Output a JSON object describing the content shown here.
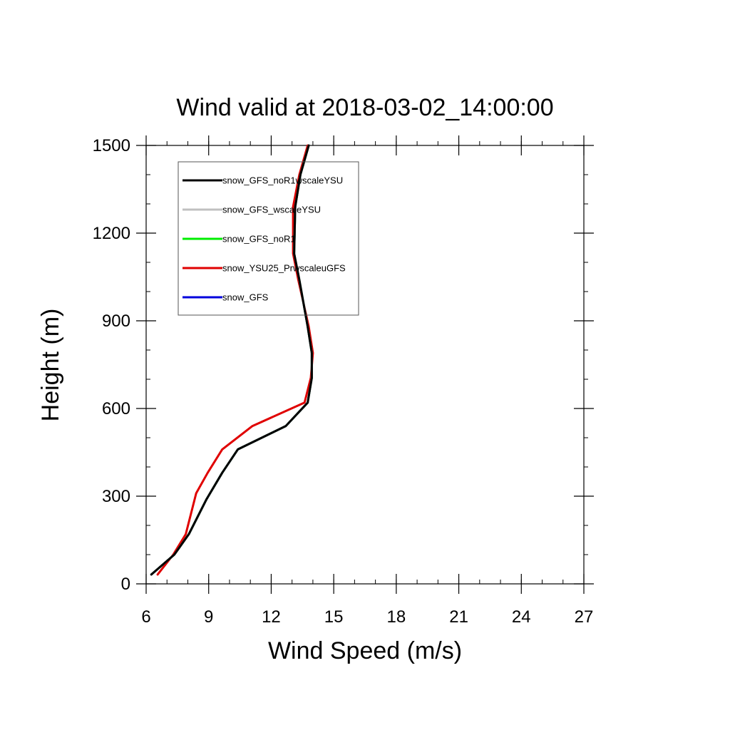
{
  "chart_data": {
    "type": "line",
    "title": "Wind valid at 2018-03-02_14:00:00",
    "xlabel": "Wind Speed (m/s)",
    "ylabel": "Height (m)",
    "xlim": [
      6,
      27
    ],
    "ylim": [
      0,
      1500
    ],
    "xticks": [
      6,
      9,
      12,
      15,
      18,
      21,
      24,
      27
    ],
    "yticks": [
      0,
      300,
      600,
      900,
      1200,
      1500
    ],
    "xtick_labels": [
      "6",
      "9",
      "12",
      "15",
      "18",
      "21",
      "24",
      "27"
    ],
    "ytick_labels": [
      "0",
      "300",
      "600",
      "900",
      "1200",
      "1500"
    ],
    "grid": false,
    "legend_position": "top-left",
    "series": [
      {
        "name": "snow_YSU25_Prwscaleu GFS",
        "legend_label": "snow_YSU25_PrwscaleuGFS",
        "color": "#e00000",
        "points": [
          [
            6.55,
            32
          ],
          [
            7.3,
            100
          ],
          [
            7.9,
            170
          ],
          [
            8.4,
            310
          ],
          [
            8.95,
            380
          ],
          [
            9.65,
            460
          ],
          [
            11.1,
            540
          ],
          [
            13.6,
            620
          ],
          [
            13.9,
            705
          ],
          [
            14.0,
            790
          ],
          [
            13.8,
            880
          ],
          [
            13.3,
            1040
          ],
          [
            13.05,
            1130
          ],
          [
            13.05,
            1290
          ],
          [
            13.35,
            1400
          ],
          [
            13.75,
            1500
          ]
        ]
      },
      {
        "name": "snow_GFS",
        "legend_label": "snow_GFS",
        "color": "#0000dd",
        "points": [
          [
            6.25,
            32
          ],
          [
            7.35,
            100
          ],
          [
            8.05,
            170
          ],
          [
            8.9,
            290
          ],
          [
            9.65,
            380
          ],
          [
            10.4,
            460
          ],
          [
            12.7,
            540
          ],
          [
            13.75,
            620
          ],
          [
            13.95,
            705
          ],
          [
            13.95,
            790
          ],
          [
            13.75,
            880
          ],
          [
            13.35,
            1040
          ],
          [
            13.1,
            1130
          ],
          [
            13.15,
            1290
          ],
          [
            13.4,
            1400
          ],
          [
            13.8,
            1500
          ]
        ]
      },
      {
        "name": "snow_GFS_noR1",
        "legend_label": "snow_GFS_noR1",
        "color": "#00ee00",
        "points": [
          [
            6.25,
            32
          ],
          [
            7.35,
            100
          ],
          [
            8.05,
            170
          ],
          [
            8.9,
            290
          ],
          [
            9.65,
            380
          ],
          [
            10.4,
            460
          ],
          [
            12.7,
            540
          ],
          [
            13.75,
            620
          ],
          [
            13.95,
            705
          ],
          [
            13.95,
            790
          ],
          [
            13.75,
            880
          ],
          [
            13.35,
            1040
          ],
          [
            13.1,
            1130
          ],
          [
            13.15,
            1290
          ],
          [
            13.4,
            1400
          ],
          [
            13.8,
            1500
          ]
        ]
      },
      {
        "name": "snow_GFS_wscaleYSU",
        "legend_label": "snow_GFS_wscaleYSU",
        "color": "#c0c0c0",
        "points": [
          [
            6.25,
            32
          ],
          [
            7.35,
            100
          ],
          [
            8.05,
            170
          ],
          [
            8.9,
            290
          ],
          [
            9.65,
            380
          ],
          [
            10.4,
            460
          ],
          [
            12.7,
            540
          ],
          [
            13.75,
            620
          ],
          [
            13.95,
            705
          ],
          [
            13.95,
            790
          ],
          [
            13.75,
            880
          ],
          [
            13.35,
            1040
          ],
          [
            13.1,
            1130
          ],
          [
            13.15,
            1290
          ],
          [
            13.4,
            1400
          ],
          [
            13.8,
            1500
          ]
        ]
      },
      {
        "name": "snow_GFS_noR1wscaleYSU",
        "legend_label": "snow_GFS_noR1wscaleYSU",
        "color": "#000000",
        "points": [
          [
            6.25,
            32
          ],
          [
            7.35,
            100
          ],
          [
            8.05,
            170
          ],
          [
            8.9,
            290
          ],
          [
            9.65,
            380
          ],
          [
            10.4,
            460
          ],
          [
            12.7,
            540
          ],
          [
            13.75,
            620
          ],
          [
            13.95,
            705
          ],
          [
            13.95,
            790
          ],
          [
            13.75,
            880
          ],
          [
            13.35,
            1040
          ],
          [
            13.1,
            1130
          ],
          [
            13.15,
            1290
          ],
          [
            13.4,
            1400
          ],
          [
            13.8,
            1500
          ]
        ]
      }
    ],
    "legend_order": [
      "snow_GFS_noR1wscaleYSU",
      "snow_GFS_wscaleYSU",
      "snow_GFS_noR1",
      "snow_YSU25_Prwscaleu GFS",
      "snow_GFS"
    ]
  }
}
